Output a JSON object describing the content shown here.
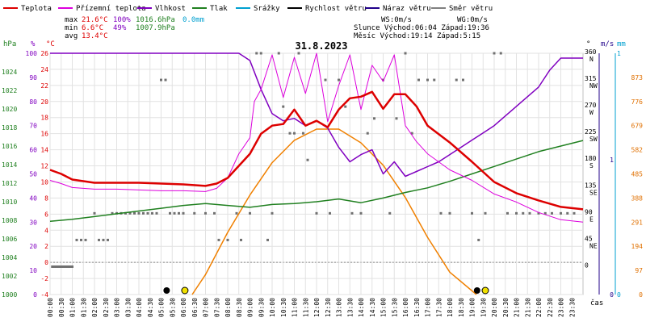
{
  "chart_data": {
    "type": "line",
    "title": "31.8.2023",
    "legend": [
      {
        "label": "Teplota",
        "color": "#dd0000"
      },
      {
        "label": "Přízemní teplota",
        "color": "#dd00dd"
      },
      {
        "label": "Vlhkost",
        "color": "#8000c0"
      },
      {
        "label": "Tlak",
        "color": "#208020"
      },
      {
        "label": "Srážky",
        "color": "#00a0d0"
      },
      {
        "label": "Rychlost větru",
        "color": "#000000"
      },
      {
        "label": "Náraz větru",
        "color": "#20008a"
      },
      {
        "label": "Směr větru",
        "color": "#808080"
      }
    ],
    "stats": {
      "max_label": "max",
      "min_label": "min",
      "avg_label": "avg",
      "max_temp": "21.6°C",
      "max_hum": "100%",
      "max_press": "1016.6hPa",
      "max_rain": "0.0mm",
      "min_temp": "6.6°C",
      "min_hum": "49%",
      "min_press": "1007.9hPa",
      "avg_temp": "13.4°C",
      "ws": "WS:0m/s",
      "wg": "WG:0m/s",
      "sun_line": "Slunce Východ:06:04  Západ:19:36",
      "moon_line": "Měsíc  Východ:19:14  Západ:5:15"
    },
    "axis_units": {
      "hpa": "hPa",
      "pct": "%",
      "degc": "°C",
      "deg": "°",
      "ms": "m/s",
      "mm": "mm",
      "xlabel": "čas"
    },
    "temp_ticks": [
      "-4",
      "-2",
      "0",
      "2",
      "4",
      "6",
      "8",
      "10",
      "12",
      "14",
      "16",
      "18",
      "20",
      "22",
      "24",
      "26"
    ],
    "hum_ticks": [
      "0",
      "10",
      "20",
      "30",
      "40",
      "50",
      "60",
      "70",
      "80",
      "90",
      "100"
    ],
    "press_ticks": [
      "1000",
      "1002",
      "1004",
      "1006",
      "1008",
      "1010",
      "1012",
      "1014",
      "1016",
      "1018",
      "1020",
      "1022",
      "1024"
    ],
    "dir_ticks": [
      "0",
      "45\nNE",
      "90\nE",
      "135\nSE",
      "180\nS",
      "225\nSW",
      "270\nW",
      "315\nNW",
      "360\nN"
    ],
    "wind_ticks": [
      "0",
      "1"
    ],
    "rain_ticks": [
      "1",
      "0"
    ],
    "sun_ticks": [
      "0",
      "97",
      "194",
      "291",
      "388",
      "485",
      "582",
      "679",
      "776",
      "873"
    ],
    "time_ticks": [
      "00:00",
      "00:30",
      "01:00",
      "01:30",
      "02:00",
      "02:30",
      "03:00",
      "03:30",
      "04:00",
      "04:30",
      "05:00",
      "05:30",
      "06:00",
      "06:30",
      "07:00",
      "07:30",
      "08:00",
      "08:30",
      "09:00",
      "09:30",
      "10:00",
      "10:30",
      "11:00",
      "11:30",
      "12:00",
      "12:30",
      "13:00",
      "13:30",
      "14:00",
      "14:30",
      "15:00",
      "15:30",
      "16:00",
      "16:30",
      "17:00",
      "17:30",
      "18:00",
      "18:30",
      "19:00",
      "19:30",
      "20:00",
      "20:30",
      "21:00",
      "21:30",
      "22:00",
      "22:30",
      "23:00",
      "23:30"
    ],
    "temperature": {
      "x": [
        0,
        0.5,
        1,
        2,
        3,
        4,
        5,
        6,
        7,
        7.5,
        8,
        8.5,
        9,
        9.5,
        10,
        10.5,
        11,
        11.5,
        12,
        12.5,
        13,
        13.5,
        14,
        14.5,
        15,
        15.5,
        16,
        16.5,
        17,
        18,
        19,
        20,
        21,
        22,
        23,
        24
      ],
      "y": [
        11.5,
        11,
        10.3,
        9.9,
        9.9,
        9.9,
        9.8,
        9.7,
        9.5,
        9.8,
        10.5,
        12,
        13.5,
        16,
        17,
        17.2,
        19,
        17,
        17.6,
        16.8,
        19,
        20.4,
        20.6,
        21.2,
        19.1,
        20.9,
        20.9,
        19.4,
        17,
        14.9,
        12.5,
        10,
        8.6,
        7.7,
        6.9,
        6.6
      ]
    },
    "ground_temperature": {
      "x": [
        0,
        0.5,
        1,
        2,
        3,
        4,
        5,
        6,
        7,
        7.5,
        8,
        8.5,
        9,
        9.2,
        9.5,
        10,
        10.5,
        11,
        11.5,
        12,
        12.5,
        13,
        13.5,
        14,
        14.5,
        15,
        15.5,
        16,
        16.5,
        17,
        18,
        19,
        20,
        21,
        22,
        23,
        24
      ],
      "y": [
        10.2,
        9.8,
        9.3,
        9.1,
        9.1,
        9.0,
        8.9,
        8.9,
        8.8,
        9.2,
        10.5,
        13.5,
        15.5,
        20,
        21.5,
        25.8,
        20.5,
        25.5,
        21,
        26,
        17.5,
        22,
        25.8,
        19,
        24.5,
        22.5,
        25.8,
        17,
        15,
        13.5,
        11.5,
        10.2,
        8.5,
        7.5,
        6.2,
        5.3,
        5.0
      ]
    },
    "humidity": {
      "x": [
        0,
        8.5,
        9,
        9.5,
        10,
        10.5,
        11,
        11.5,
        12,
        12.5,
        13,
        13.5,
        14,
        14.5,
        15,
        15.5,
        16,
        16.5,
        17,
        17.5,
        18,
        18.5,
        19,
        19.5,
        20,
        20.5,
        21,
        21.5,
        22,
        22.5,
        23,
        24
      ],
      "y": [
        100,
        100,
        97,
        85,
        75,
        72,
        73,
        70,
        72,
        69,
        61,
        55,
        58,
        60,
        50,
        55,
        49,
        51,
        53,
        55,
        58,
        61,
        64,
        67,
        70,
        74,
        78,
        82,
        86,
        93,
        98,
        98
      ]
    },
    "pressure": {
      "x": [
        0,
        1,
        2,
        3,
        4,
        5,
        6,
        7,
        8,
        9,
        10,
        11,
        12,
        13,
        14,
        15,
        16,
        17,
        18,
        19,
        20,
        21,
        22,
        23,
        24
      ],
      "y": [
        1007.9,
        1008.1,
        1008.4,
        1008.7,
        1009.0,
        1009.3,
        1009.6,
        1009.8,
        1009.6,
        1009.4,
        1009.7,
        1009.8,
        1010,
        1010.3,
        1009.9,
        1010.4,
        1011,
        1011.5,
        1012.2,
        1013,
        1013.8,
        1014.6,
        1015.4,
        1016,
        1016.6
      ]
    },
    "solar": {
      "x": [
        6.4,
        7,
        8,
        9,
        10,
        11,
        12,
        13,
        14,
        15,
        16,
        17,
        18,
        19.2
      ],
      "y": [
        0,
        80,
        250,
        400,
        530,
        620,
        665,
        665,
        610,
        520,
        390,
        230,
        90,
        0
      ]
    },
    "wind_direction_marks": {
      "x": [
        0.1,
        0.2,
        0.3,
        0.4,
        0.5,
        0.6,
        0.7,
        0.8,
        0.9,
        1.0,
        1.2,
        1.4,
        1.6,
        2.0,
        2.2,
        2.4,
        2.6,
        2.8,
        3,
        3.2,
        3.4,
        3.6,
        3.8,
        4,
        4.2,
        4.4,
        4.6,
        4.8,
        5,
        5.2,
        5.4,
        5.6,
        5.8,
        6,
        6.5,
        7,
        7.4,
        7.6,
        8,
        8.4,
        8.6,
        9,
        9.3,
        9.5,
        9.8,
        10,
        10.3,
        10.5,
        10.8,
        11,
        11.2,
        11.4,
        11.6,
        12,
        12.4,
        12.6,
        13,
        13.3,
        13.6,
        14,
        14.3,
        14.6,
        15,
        15.3,
        15.6,
        16,
        16.3,
        16.6,
        17,
        17.3,
        17.6,
        18,
        18.3,
        18.6,
        19,
        19.3,
        19.6,
        20,
        20.3,
        20.6,
        21,
        21.3,
        21.6,
        22,
        22.3,
        22.6,
        23,
        23.3,
        23.6
      ],
      "y": [
        0,
        0,
        0,
        0,
        0,
        0,
        0,
        0,
        0,
        0,
        45,
        45,
        45,
        90,
        45,
        45,
        45,
        90,
        90,
        90,
        90,
        90,
        90,
        90,
        90,
        90,
        90,
        90,
        315,
        315,
        90,
        90,
        90,
        90,
        90,
        90,
        90,
        45,
        45,
        90,
        45,
        90,
        360,
        360,
        45,
        90,
        360,
        270,
        225,
        225,
        360,
        225,
        180,
        90,
        315,
        90,
        315,
        270,
        90,
        90,
        225,
        250,
        315,
        90,
        250,
        360,
        225,
        315,
        315,
        315,
        90,
        90,
        315,
        315,
        90,
        45,
        90,
        360,
        360,
        90,
        90,
        90,
        90,
        90,
        90,
        90,
        90,
        90,
        90
      ]
    }
  }
}
